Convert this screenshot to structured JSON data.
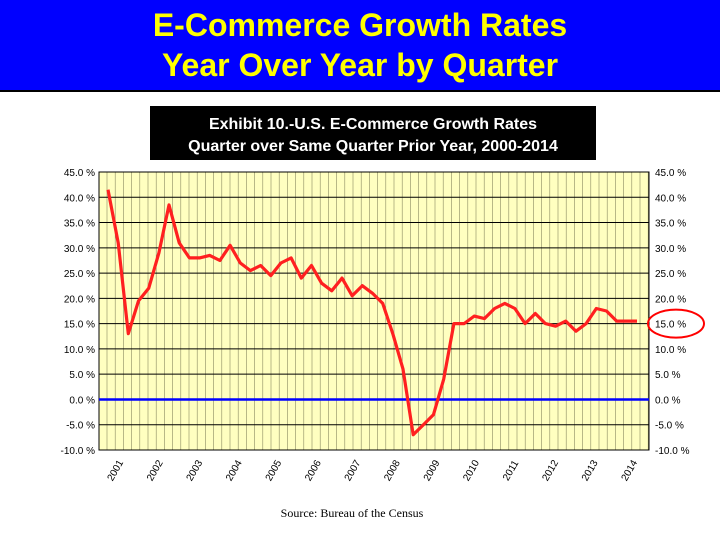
{
  "banner": {
    "title_line1": "E-Commerce Growth Rates",
    "title_line2": "Year Over Year by Quarter"
  },
  "colors": {
    "banner_bg": "#0000ff",
    "banner_text": "#ffff00",
    "plot_bg": "#ffffc0",
    "series_line": "#ff2020",
    "zero_line": "#0000ff",
    "highlight_circle": "#ff0000"
  },
  "chart_data": {
    "type": "line",
    "title_line1": "Exhibit 10.-U.S. E-Commerce Growth Rates",
    "title_line2": "Quarter over Same Quarter Prior Year, 2000-2014",
    "source": "Source: Bureau of the Census",
    "xlabel": "",
    "ylabel": "",
    "ylim": [
      -10,
      45
    ],
    "y_ticks": [
      "-10.0 %",
      "-5.0 %",
      "0.0 %",
      "5.0 %",
      "10.0 %",
      "15.0 %",
      "20.0 %",
      "25.0 %",
      "30.0 %",
      "35.0 %",
      "40.0 %",
      "45.0 %"
    ],
    "y_tick_values": [
      -10,
      -5,
      0,
      5,
      10,
      15,
      20,
      25,
      30,
      35,
      40,
      45
    ],
    "x_tick_labels": [
      "2001",
      "2002",
      "2003",
      "2004",
      "2005",
      "2006",
      "2007",
      "2008",
      "2009",
      "2010",
      "2011",
      "2012",
      "2013",
      "2014"
    ],
    "highlighted_tick": "15.0 %",
    "grid": true,
    "reference_line": 0,
    "series": [
      {
        "values": [
          41.5,
          31.0,
          13.0,
          19.5,
          22.0,
          29.0,
          38.5,
          31.0,
          28.0,
          28.0,
          28.5,
          27.5,
          30.5,
          27.0,
          25.5,
          26.5,
          24.5,
          27.0,
          28.0,
          24.0,
          26.5,
          23.0,
          21.5,
          24.0,
          20.5,
          22.5,
          21.0,
          19.0,
          13.0,
          6.0,
          -7.0,
          -5.0,
          -3.0,
          4.0,
          15.0,
          15.0,
          16.5,
          16.0,
          18.0,
          19.0,
          18.0,
          15.0,
          17.0,
          15.0,
          14.5,
          15.5,
          13.5,
          15.0,
          18.0,
          17.5,
          15.5,
          15.5,
          15.5
        ]
      }
    ]
  }
}
